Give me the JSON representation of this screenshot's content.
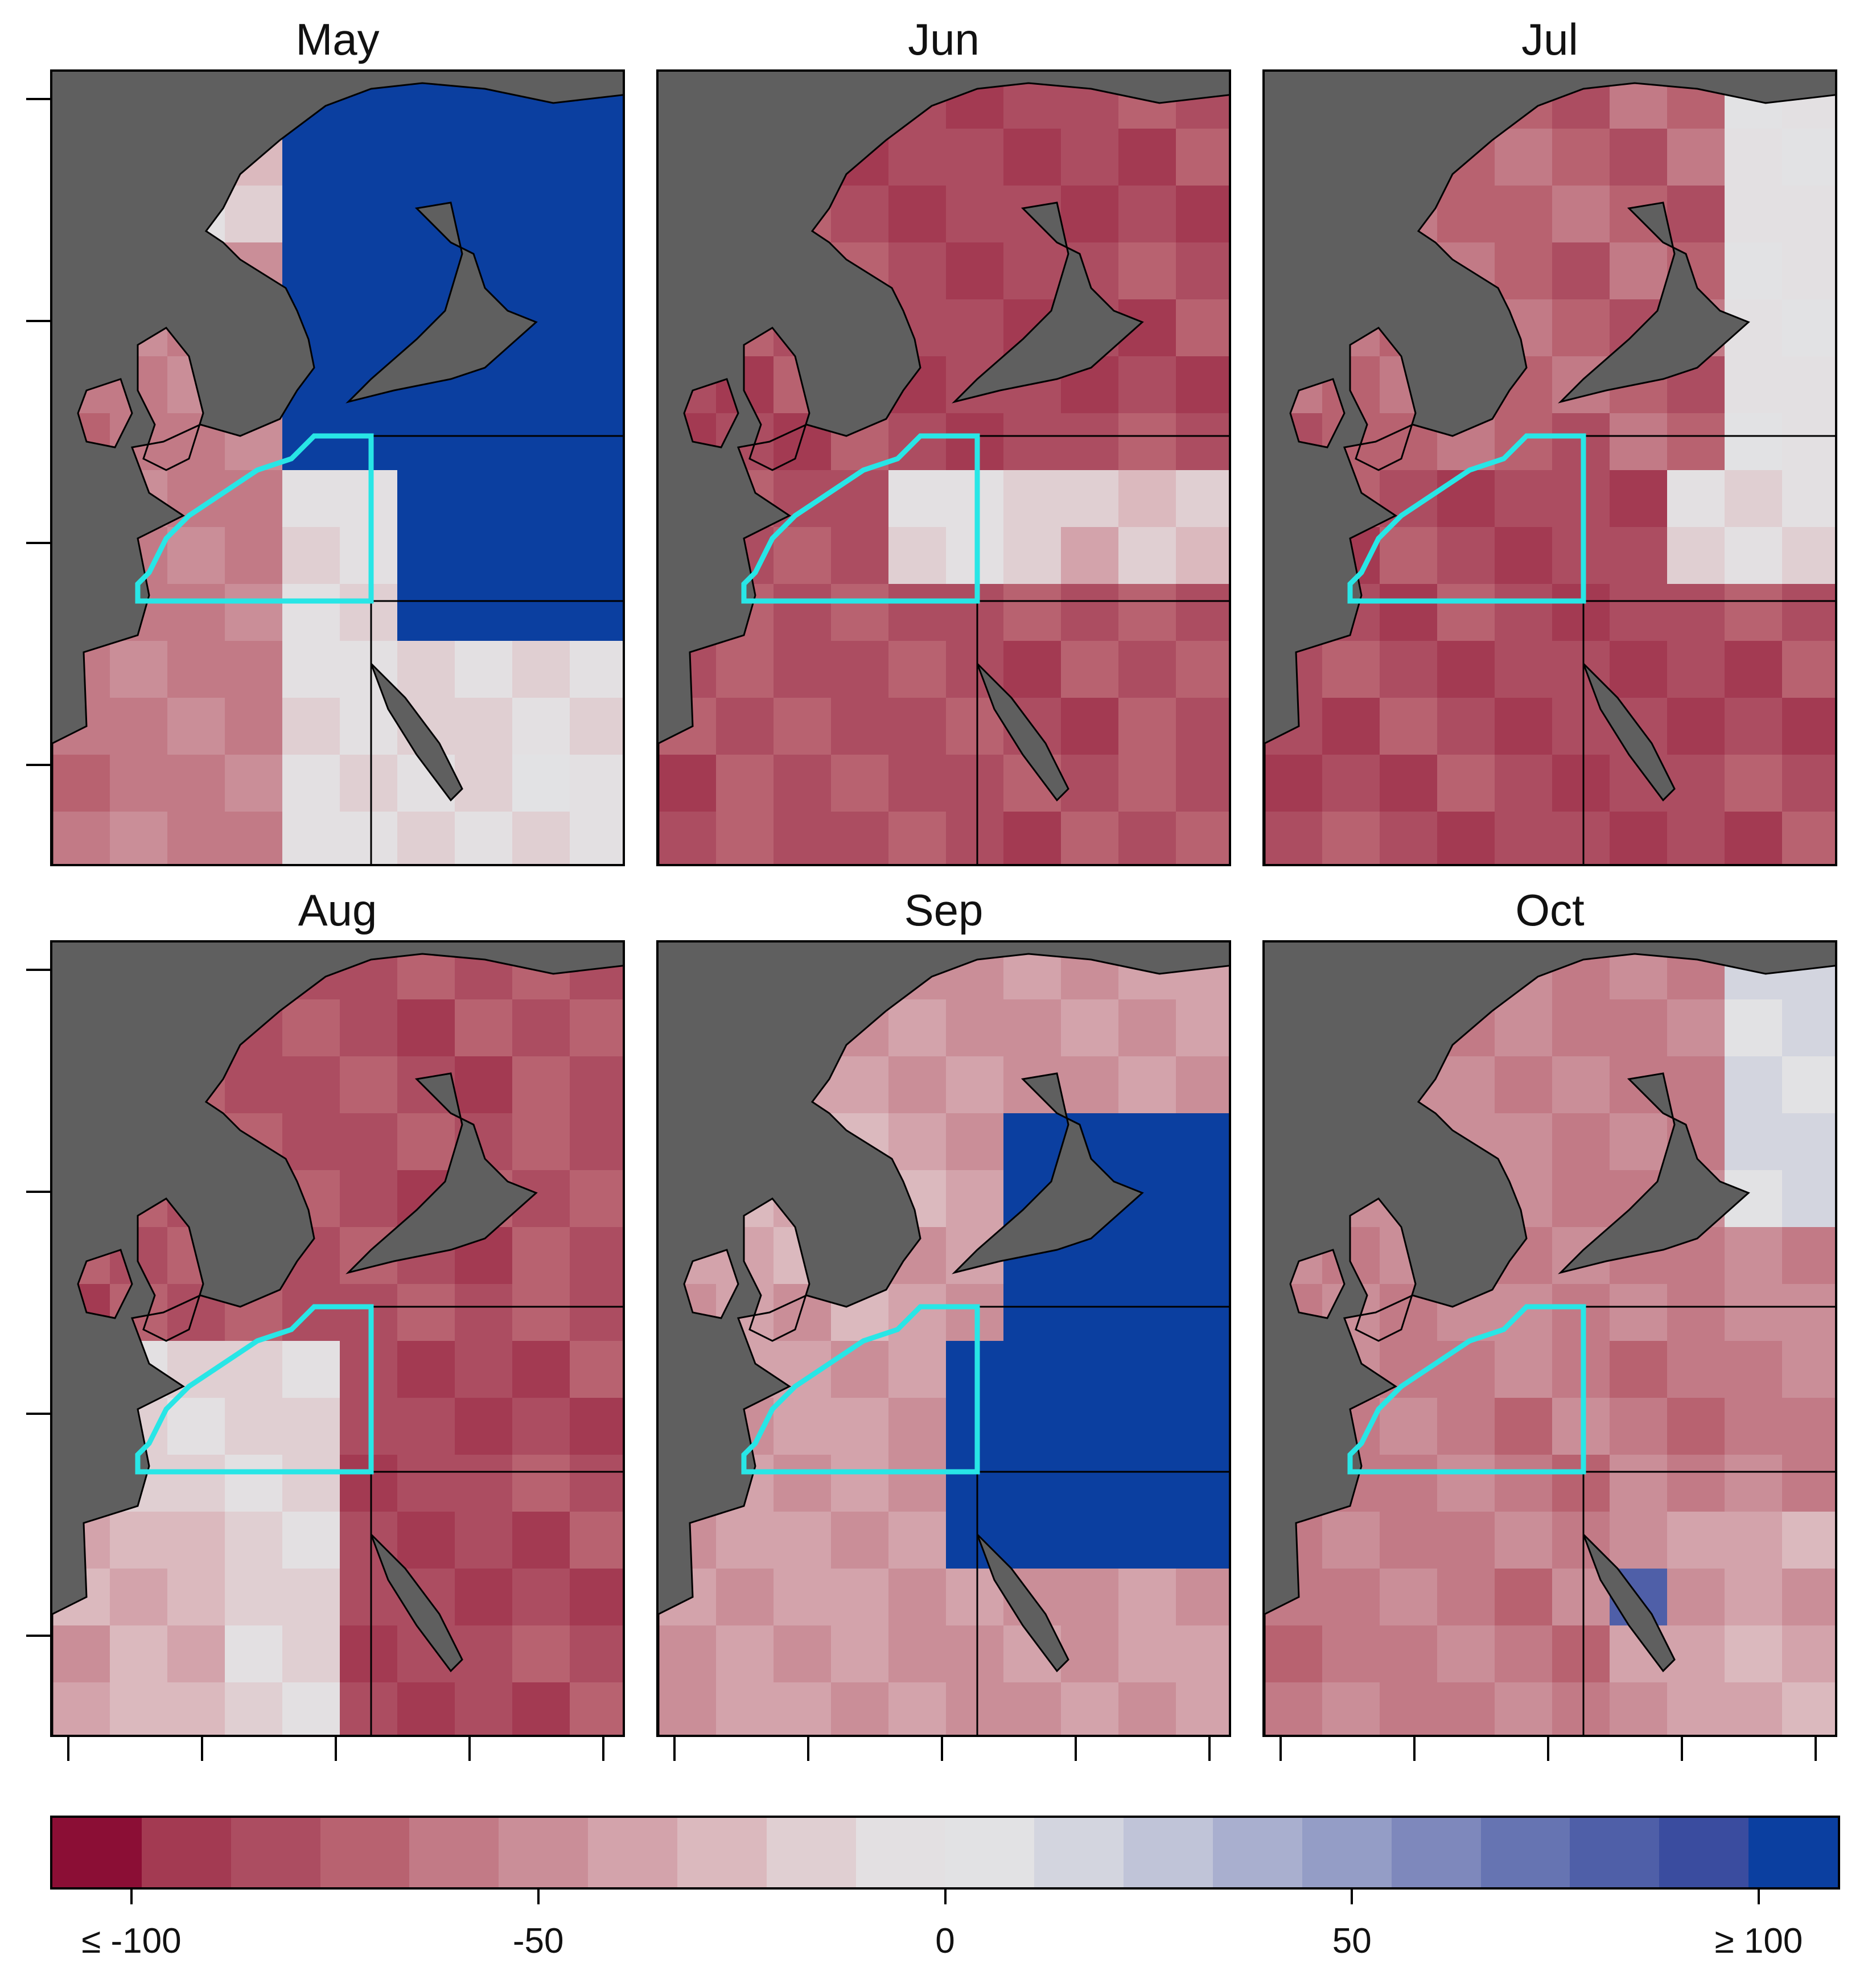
{
  "panels": [
    {
      "month": "May",
      "scheme": "may"
    },
    {
      "month": "Jun",
      "scheme": "jun"
    },
    {
      "month": "Jul",
      "scheme": "jul"
    },
    {
      "month": "Aug",
      "scheme": "aug"
    },
    {
      "month": "Sep",
      "scheme": "sep"
    },
    {
      "month": "Oct",
      "scheme": "oct"
    }
  ],
  "colorbar": {
    "labels": [
      "≤ -100",
      "-50",
      "0",
      "50",
      "≥ 100"
    ],
    "tick_values": [
      -100,
      -50,
      0,
      50,
      100
    ],
    "range": [
      -110,
      110
    ],
    "colors": [
      "#8b0e35",
      "#a33a52",
      "#ac4d61",
      "#b86270",
      "#c27a86",
      "#ca8e98",
      "#d3a3ab",
      "#dbb9be",
      "#e0cfd2",
      "#e3e0e2",
      "#e2e2e4",
      "#d3d5df",
      "#c0c4d8",
      "#a9afcf",
      "#949dc6",
      "#7e88bc",
      "#6674b2",
      "#4f5fa8",
      "#3a4c9f",
      "#0b3fa0"
    ]
  },
  "highlight_color": "#28e6e6",
  "land_color": "#5f5f5f",
  "border_color": "#000000"
}
